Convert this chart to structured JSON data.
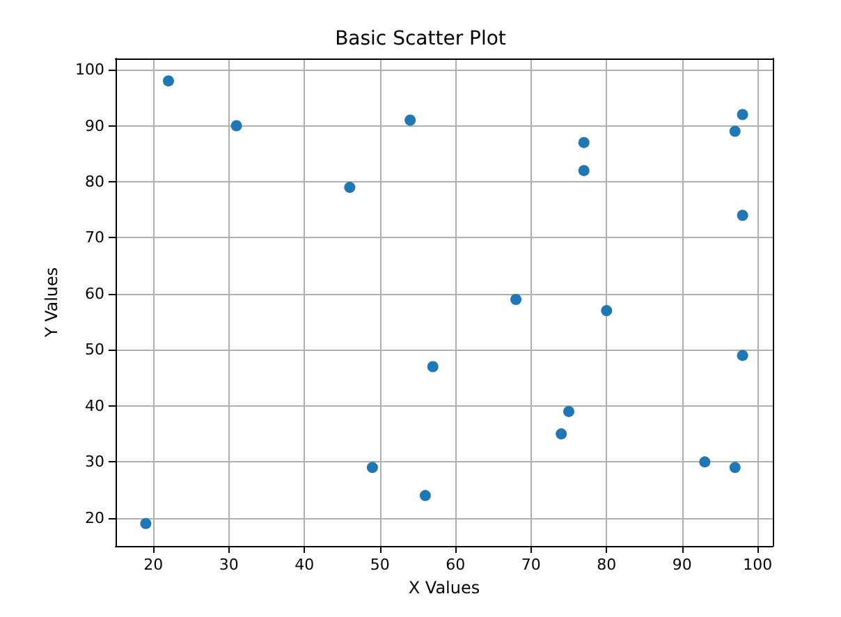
{
  "chart_data": {
    "type": "scatter",
    "title": "Basic Scatter Plot",
    "xlabel": "X Values",
    "ylabel": "Y Values",
    "x": [
      19,
      22,
      31,
      46,
      54,
      49,
      56,
      57,
      68,
      74,
      75,
      77,
      77,
      80,
      93,
      97,
      97,
      98,
      98,
      98
    ],
    "series": [
      {
        "color": "#1f77b4",
        "values": [
          19,
          98,
          90,
          79,
          91,
          29,
          24,
          47,
          59,
          35,
          39,
          87,
          82,
          57,
          30,
          29,
          89,
          92,
          74,
          49
        ]
      }
    ],
    "xlim": [
      15,
      102
    ],
    "ylim": [
      15,
      102
    ],
    "xticks": [
      20,
      30,
      40,
      50,
      60,
      70,
      80,
      90,
      100
    ],
    "yticks": [
      20,
      30,
      40,
      50,
      60,
      70,
      80,
      90,
      100
    ],
    "grid": true,
    "marker": "circle"
  }
}
